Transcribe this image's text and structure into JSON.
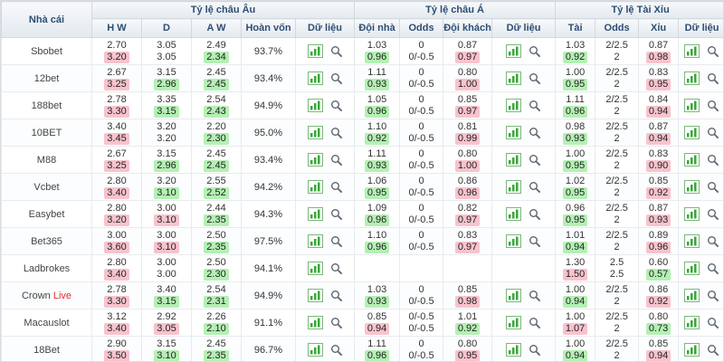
{
  "header": {
    "col_bookmaker": "Nhà cái",
    "groups": [
      {
        "label": "Tỷ lệ châu Âu",
        "cols": [
          "H W",
          "D",
          "A W",
          "Hoàn vốn",
          "Dữ liệu"
        ]
      },
      {
        "label": "Tỷ lệ châu Á",
        "cols": [
          "Đội nhà",
          "Odds",
          "Đội khách",
          "Dữ liệu"
        ]
      },
      {
        "label": "Tỷ lệ Tài Xỉu",
        "cols": [
          "Tài",
          "Odds",
          "Xỉu",
          "Dữ liệu"
        ]
      }
    ]
  },
  "colors": {
    "highlight_up_pink": "#f8c3cd",
    "highlight_down_green": "#b4f0b4",
    "header_text": "#2e4e73",
    "live_red": "#e03030",
    "chart_icon_green": "#3aa53a",
    "magnifier_gray": "#5a6470"
  },
  "icons": {
    "chart": "chart-icon",
    "magnifier": "magnifier-icon"
  },
  "rows": [
    {
      "name": "Sbobet",
      "suffix": "",
      "payout": "93.7%",
      "eu": [
        [
          "2.70",
          "3.20",
          "p"
        ],
        [
          "3.05",
          "3.05",
          ""
        ],
        [
          "2.49",
          "2.34",
          "g"
        ]
      ],
      "asia": [
        [
          "1.03",
          "0.96",
          "g"
        ],
        [
          "0",
          "0/-0.5",
          ""
        ],
        [
          "0.87",
          "0.97",
          "p"
        ]
      ],
      "ou": [
        [
          "1.03",
          "0.92",
          "g"
        ],
        [
          "2/2.5",
          "2",
          ""
        ],
        [
          "0.87",
          "0.98",
          "p"
        ]
      ]
    },
    {
      "name": "12bet",
      "suffix": "",
      "payout": "93.4%",
      "eu": [
        [
          "2.67",
          "3.25",
          "p"
        ],
        [
          "3.15",
          "2.96",
          "g"
        ],
        [
          "2.45",
          "2.45",
          "g"
        ]
      ],
      "asia": [
        [
          "1.11",
          "0.93",
          "g"
        ],
        [
          "0",
          "0/-0.5",
          ""
        ],
        [
          "0.80",
          "1.00",
          "p"
        ]
      ],
      "ou": [
        [
          "1.00",
          "0.95",
          "g"
        ],
        [
          "2/2.5",
          "2",
          ""
        ],
        [
          "0.83",
          "0.95",
          "p"
        ]
      ]
    },
    {
      "name": "188bet",
      "suffix": "",
      "payout": "94.9%",
      "eu": [
        [
          "2.78",
          "3.30",
          "p"
        ],
        [
          "3.35",
          "3.15",
          "g"
        ],
        [
          "2.54",
          "2.43",
          "g"
        ]
      ],
      "asia": [
        [
          "1.05",
          "0.96",
          "g"
        ],
        [
          "0",
          "0/-0.5",
          ""
        ],
        [
          "0.85",
          "0.97",
          "p"
        ]
      ],
      "ou": [
        [
          "1.11",
          "0.96",
          "g"
        ],
        [
          "2/2.5",
          "2",
          ""
        ],
        [
          "0.84",
          "0.94",
          "p"
        ]
      ]
    },
    {
      "name": "10BET",
      "suffix": "",
      "payout": "95.0%",
      "eu": [
        [
          "3.40",
          "3.45",
          "p"
        ],
        [
          "3.20",
          "3.20",
          ""
        ],
        [
          "2.20",
          "2.30",
          "g"
        ]
      ],
      "asia": [
        [
          "1.10",
          "0.92",
          "g"
        ],
        [
          "0",
          "0/-0.5",
          ""
        ],
        [
          "0.81",
          "0.99",
          "p"
        ]
      ],
      "ou": [
        [
          "0.98",
          "0.93",
          "g"
        ],
        [
          "2/2.5",
          "2",
          ""
        ],
        [
          "0.87",
          "0.94",
          "p"
        ]
      ]
    },
    {
      "name": "M88",
      "suffix": "",
      "payout": "93.4%",
      "eu": [
        [
          "2.67",
          "3.25",
          "p"
        ],
        [
          "3.15",
          "2.96",
          "g"
        ],
        [
          "2.45",
          "2.45",
          "g"
        ]
      ],
      "asia": [
        [
          "1.11",
          "0.93",
          "g"
        ],
        [
          "0",
          "0/-0.5",
          ""
        ],
        [
          "0.80",
          "1.00",
          "p"
        ]
      ],
      "ou": [
        [
          "1.00",
          "0.95",
          "g"
        ],
        [
          "2/2.5",
          "2",
          ""
        ],
        [
          "0.83",
          "0.90",
          "p"
        ]
      ]
    },
    {
      "name": "Vcbet",
      "suffix": "",
      "payout": "94.2%",
      "eu": [
        [
          "2.80",
          "3.40",
          "p"
        ],
        [
          "3.20",
          "3.10",
          "g"
        ],
        [
          "2.55",
          "2.52",
          "g"
        ]
      ],
      "asia": [
        [
          "1.06",
          "0.95",
          "g"
        ],
        [
          "0",
          "0/-0.5",
          ""
        ],
        [
          "0.86",
          "0.96",
          "p"
        ]
      ],
      "ou": [
        [
          "1.02",
          "0.95",
          "g"
        ],
        [
          "2/2.5",
          "2",
          ""
        ],
        [
          "0.85",
          "0.92",
          "p"
        ]
      ]
    },
    {
      "name": "Easybet",
      "suffix": "",
      "payout": "94.3%",
      "eu": [
        [
          "2.80",
          "3.20",
          "p"
        ],
        [
          "3.00",
          "3.10",
          "p"
        ],
        [
          "2.44",
          "2.35",
          "g"
        ]
      ],
      "asia": [
        [
          "1.09",
          "0.96",
          "g"
        ],
        [
          "0",
          "0/-0.5",
          ""
        ],
        [
          "0.82",
          "0.97",
          "p"
        ]
      ],
      "ou": [
        [
          "0.96",
          "0.95",
          "g"
        ],
        [
          "2/2.5",
          "2",
          ""
        ],
        [
          "0.87",
          "0.93",
          "p"
        ]
      ]
    },
    {
      "name": "Bet365",
      "suffix": "",
      "payout": "97.5%",
      "eu": [
        [
          "3.00",
          "3.60",
          "p"
        ],
        [
          "3.00",
          "3.10",
          "p"
        ],
        [
          "2.50",
          "2.35",
          "g"
        ]
      ],
      "asia": [
        [
          "1.10",
          "0.96",
          "g"
        ],
        [
          "0",
          "0/-0.5",
          ""
        ],
        [
          "0.83",
          "0.97",
          "p"
        ]
      ],
      "ou": [
        [
          "1.01",
          "0.94",
          "g"
        ],
        [
          "2/2.5",
          "2",
          ""
        ],
        [
          "0.89",
          "0.96",
          "p"
        ]
      ]
    },
    {
      "name": "Ladbrokes",
      "suffix": "",
      "payout": "94.1%",
      "eu": [
        [
          "2.80",
          "3.40",
          "p"
        ],
        [
          "3.00",
          "3.00",
          ""
        ],
        [
          "2.50",
          "2.30",
          "g"
        ]
      ],
      "asia": null,
      "ou": [
        [
          "1.30",
          "1.50",
          "p"
        ],
        [
          "2.5",
          "2.5",
          ""
        ],
        [
          "0.60",
          "0.57",
          "g"
        ]
      ]
    },
    {
      "name": "Crown",
      "suffix": "Live",
      "payout": "94.9%",
      "eu": [
        [
          "2.78",
          "3.30",
          "p"
        ],
        [
          "3.40",
          "3.15",
          "g"
        ],
        [
          "2.54",
          "2.31",
          "g"
        ]
      ],
      "asia": [
        [
          "1.03",
          "0.93",
          "g"
        ],
        [
          "0",
          "0/-0.5",
          ""
        ],
        [
          "0.85",
          "0.98",
          "p"
        ]
      ],
      "ou": [
        [
          "1.00",
          "0.94",
          "g"
        ],
        [
          "2/2.5",
          "2",
          ""
        ],
        [
          "0.86",
          "0.92",
          "p"
        ]
      ]
    },
    {
      "name": "Macauslot",
      "suffix": "",
      "payout": "91.1%",
      "eu": [
        [
          "3.12",
          "3.40",
          "p"
        ],
        [
          "2.92",
          "3.05",
          "p"
        ],
        [
          "2.26",
          "2.10",
          "g"
        ]
      ],
      "asia": [
        [
          "0.85",
          "0.94",
          "p"
        ],
        [
          "0/-0.5",
          "0/-0.5",
          ""
        ],
        [
          "1.01",
          "0.92",
          "g"
        ]
      ],
      "ou": [
        [
          "1.00",
          "1.07",
          "p"
        ],
        [
          "2/2.5",
          "2",
          ""
        ],
        [
          "0.80",
          "0.73",
          "g"
        ]
      ]
    },
    {
      "name": "18Bet",
      "suffix": "",
      "payout": "96.7%",
      "eu": [
        [
          "2.90",
          "3.50",
          "p"
        ],
        [
          "3.15",
          "3.10",
          "g"
        ],
        [
          "2.45",
          "2.35",
          "g"
        ]
      ],
      "asia": [
        [
          "1.11",
          "0.96",
          "g"
        ],
        [
          "0",
          "0/-0.5",
          ""
        ],
        [
          "0.80",
          "0.95",
          "p"
        ]
      ],
      "ou": [
        [
          "1.00",
          "0.94",
          "g"
        ],
        [
          "2/2.5",
          "2",
          ""
        ],
        [
          "0.85",
          "0.94",
          "p"
        ]
      ]
    }
  ]
}
